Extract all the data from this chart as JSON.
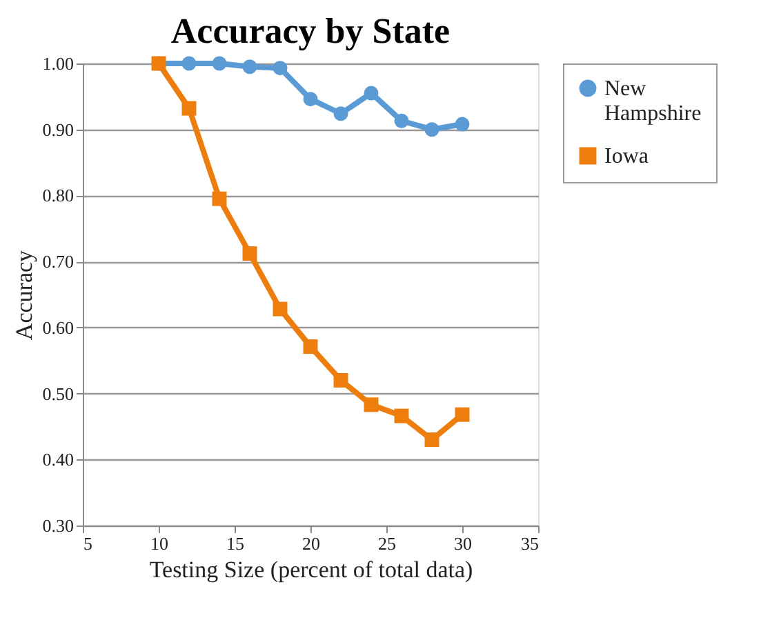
{
  "chart_data": {
    "type": "line",
    "title": "Accuracy by State",
    "xlabel": "Testing Size (percent of total data)",
    "ylabel": "Accuracy",
    "x": [
      10,
      12,
      14,
      16,
      18,
      20,
      22,
      24,
      26,
      28,
      30
    ],
    "series": [
      {
        "name": "New Hampshire",
        "color": "#5b9bd5",
        "marker": "circle",
        "values": [
          1.0,
          1.0,
          1.0,
          0.995,
          0.993,
          0.946,
          0.924,
          0.955,
          0.913,
          0.9,
          0.908
        ]
      },
      {
        "name": "Iowa",
        "color": "#ed7d0d",
        "marker": "square",
        "values": [
          1.0,
          0.932,
          0.795,
          0.712,
          0.628,
          0.571,
          0.52,
          0.483,
          0.466,
          0.43,
          0.468
        ]
      }
    ],
    "xlim": [
      5,
      35
    ],
    "xticks": [
      5,
      10,
      15,
      20,
      25,
      30,
      35
    ],
    "ylim": [
      0.3,
      1.0
    ],
    "yticks": [
      {
        "value": 0.3,
        "label": "0.30"
      },
      {
        "value": 0.4,
        "label": "0.40"
      },
      {
        "value": 0.5,
        "label": "0.50"
      },
      {
        "value": 0.6,
        "label": "0.60"
      },
      {
        "value": 0.7,
        "label": "0.70"
      },
      {
        "value": 0.8,
        "label": "0.80"
      },
      {
        "value": 0.9,
        "label": "0.90"
      },
      {
        "value": 1.0,
        "label": "1.00"
      }
    ],
    "grid": "y",
    "legend": "right",
    "line_style": "solid"
  }
}
